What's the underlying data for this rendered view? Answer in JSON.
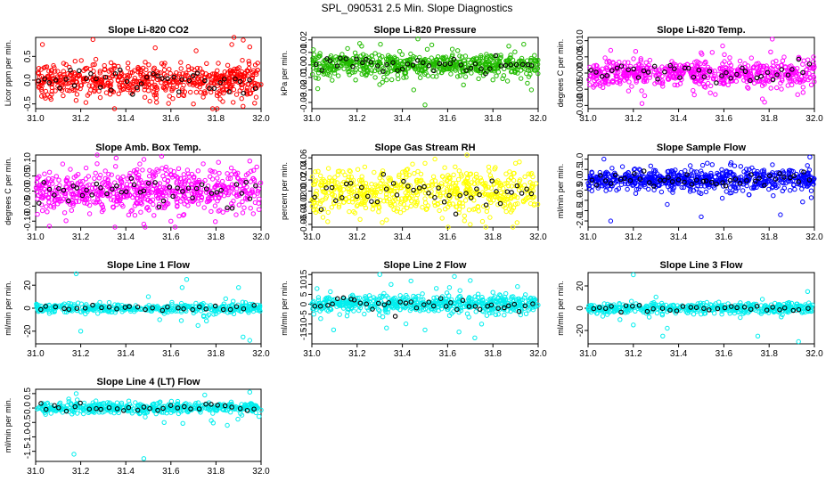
{
  "figure_title": "SPL_090531  2.5 Min. Slope Diagnostics",
  "colors": {
    "red": "#ff0000",
    "green": "#22bb00",
    "magenta": "#ff00ff",
    "yellow": "#ffff00",
    "blue": "#0000ff",
    "cyan": "#00eeee",
    "black": "#000000"
  },
  "chart_data": [
    {
      "type": "scatter",
      "title": "Slope Li-820 CO2",
      "ylabel": "Licor ppm per min.",
      "color": "red",
      "xlim": [
        31.0,
        32.0
      ],
      "ylim": [
        -0.6,
        0.9
      ],
      "yticks": [
        -0.5,
        0.0,
        0.5
      ],
      "ytick_labels": [
        "-0.5",
        "0.0",
        "0.5"
      ],
      "xticks": [
        31.0,
        31.2,
        31.4,
        31.6,
        31.8,
        32.0
      ],
      "xtick_labels": [
        "31.0",
        "31.2",
        "31.4",
        "31.6",
        "31.8",
        "32.0"
      ],
      "n_points": 600,
      "spread": 0.18,
      "outliers": [
        [
          31.83,
          -0.45
        ],
        [
          31.87,
          0.75
        ],
        [
          31.88,
          0.9
        ],
        [
          31.92,
          -0.55
        ],
        [
          31.95,
          0.7
        ],
        [
          31.03,
          0.75
        ],
        [
          31.7,
          -0.5
        ]
      ]
    },
    {
      "type": "scatter",
      "title": "Slope Li-820 Pressure",
      "ylabel": "kPa per min.",
      "color": "green",
      "xlim": [
        31.0,
        32.0
      ],
      "ylim": [
        -0.035,
        0.022
      ],
      "yticks": [
        -0.03,
        -0.02,
        -0.01,
        0.0,
        0.01,
        0.02
      ],
      "ytick_labels": [
        "-0.03",
        "-0.02",
        "-0.01",
        "0.00",
        "0.01",
        "0.02"
      ],
      "xticks": [
        31.0,
        31.2,
        31.4,
        31.6,
        31.8,
        32.0
      ],
      "xtick_labels": [
        "31.0",
        "31.2",
        "31.4",
        "31.6",
        "31.8",
        "32.0"
      ],
      "n_points": 600,
      "spread": 0.0045,
      "outliers": [
        [
          31.22,
          0.015
        ],
        [
          31.28,
          -0.01
        ],
        [
          31.33,
          -0.012
        ],
        [
          31.45,
          -0.02
        ],
        [
          31.5,
          -0.032
        ],
        [
          31.53,
          0.016
        ],
        [
          31.67,
          -0.016
        ],
        [
          31.8,
          -0.012
        ],
        [
          31.97,
          -0.02
        ],
        [
          31.87,
          0.015
        ]
      ]
    },
    {
      "type": "scatter",
      "title": "Slope Li-820 Temp.",
      "ylabel": "degrees C per min.",
      "color": "magenta",
      "xlim": [
        31.0,
        32.0
      ],
      "ylim": [
        -0.011,
        0.011
      ],
      "yticks": [
        -0.01,
        -0.005,
        0.0,
        0.005,
        0.01
      ],
      "ytick_labels": [
        "-0.010",
        "-0.005",
        "0.000",
        "0.005",
        "0.010"
      ],
      "xticks": [
        31.0,
        31.2,
        31.4,
        31.6,
        31.8,
        32.0
      ],
      "xtick_labels": [
        "31.0",
        "31.2",
        "31.4",
        "31.6",
        "31.8",
        "32.0"
      ],
      "n_points": 600,
      "spread": 0.0022,
      "outliers": [
        [
          31.77,
          -0.008
        ],
        [
          31.78,
          -0.009
        ],
        [
          31.25,
          -0.007
        ],
        [
          31.1,
          0.007
        ],
        [
          31.95,
          -0.006
        ]
      ]
    },
    {
      "type": "scatter",
      "title": "Slope Amb. Box Temp.",
      "ylabel": "degrees C per min.",
      "color": "magenta",
      "xlim": [
        31.0,
        32.0
      ],
      "ylim": [
        -0.12,
        0.12
      ],
      "yticks": [
        -0.1,
        -0.05,
        0.0,
        0.05,
        0.1
      ],
      "ytick_labels": [
        "-0.10",
        "-0.05",
        "0.00",
        "0.05",
        "0.10"
      ],
      "xticks": [
        31.0,
        31.2,
        31.4,
        31.6,
        31.8,
        32.0
      ],
      "xtick_labels": [
        "31.0",
        "31.2",
        "31.4",
        "31.6",
        "31.8",
        "32.0"
      ],
      "n_points": 650,
      "spread": 0.035,
      "outliers": [
        [
          31.48,
          -0.11
        ],
        [
          31.12,
          0.09
        ],
        [
          31.95,
          0.1
        ],
        [
          31.6,
          -0.1
        ]
      ]
    },
    {
      "type": "scatter",
      "title": "Slope Gas Stream RH",
      "ylabel": "percent per min.",
      "color": "yellow",
      "xlim": [
        31.0,
        32.0
      ],
      "ylim": [
        -0.065,
        0.065
      ],
      "yticks": [
        -0.06,
        -0.04,
        -0.02,
        0.0,
        0.02,
        0.04,
        0.06
      ],
      "ytick_labels": [
        "-0.06",
        "-0.04",
        "-0.02",
        "0.00",
        "0.02",
        "0.04",
        "0.06"
      ],
      "xticks": [
        31.0,
        31.2,
        31.4,
        31.6,
        31.8,
        32.0
      ],
      "xtick_labels": [
        "31.0",
        "31.2",
        "31.4",
        "31.6",
        "31.8",
        "32.0"
      ],
      "n_points": 600,
      "spread": 0.02,
      "outliers": [
        [
          31.07,
          -0.055
        ],
        [
          31.33,
          -0.052
        ],
        [
          31.5,
          0.05
        ],
        [
          31.7,
          -0.06
        ],
        [
          31.9,
          0.05
        ]
      ]
    },
    {
      "type": "scatter",
      "title": "Slope Sample Flow",
      "ylabel": "ml/min per min.",
      "color": "blue",
      "xlim": [
        31.0,
        32.0
      ],
      "ylim": [
        -2.3,
        1.2
      ],
      "yticks": [
        -2.0,
        -1.5,
        -1.0,
        -0.5,
        0.0,
        0.5,
        1.0
      ],
      "ytick_labels": [
        "-2.0",
        "-1.5",
        "-1.0",
        "-0.5",
        "0.0",
        "0.5",
        "1.0"
      ],
      "xticks": [
        31.0,
        31.2,
        31.4,
        31.6,
        31.8,
        32.0
      ],
      "xtick_labels": [
        "31.0",
        "31.2",
        "31.4",
        "31.6",
        "31.8",
        "32.0"
      ],
      "n_points": 650,
      "spread": 0.25,
      "outliers": [
        [
          31.1,
          -2.0
        ],
        [
          31.5,
          -1.8
        ],
        [
          31.85,
          -1.7
        ],
        [
          31.98,
          1.1
        ],
        [
          31.07,
          1.0
        ],
        [
          31.35,
          -1.2
        ]
      ]
    },
    {
      "type": "scatter",
      "title": "Slope Line 1 Flow",
      "ylabel": "ml/min per min.",
      "color": "cyan",
      "xlim": [
        31.0,
        32.0
      ],
      "ylim": [
        -31,
        31
      ],
      "yticks": [
        -20,
        0,
        20
      ],
      "ytick_labels": [
        "-20",
        "0",
        "20"
      ],
      "xticks": [
        31.0,
        31.2,
        31.4,
        31.6,
        31.8,
        32.0
      ],
      "xtick_labels": [
        "31.0",
        "31.2",
        "31.4",
        "31.6",
        "31.8",
        "32.0"
      ],
      "n_points": 400,
      "spread": 2.0,
      "outliers": [
        [
          31.18,
          30
        ],
        [
          31.2,
          -20
        ],
        [
          31.65,
          18
        ],
        [
          31.67,
          25
        ],
        [
          31.72,
          -15
        ],
        [
          31.9,
          18
        ],
        [
          31.92,
          -25
        ],
        [
          31.95,
          -28
        ],
        [
          31.5,
          10
        ],
        [
          31.55,
          -10
        ]
      ]
    },
    {
      "type": "scatter",
      "title": "Slope Line 2 Flow",
      "ylabel": "ml/min per min.",
      "color": "cyan",
      "xlim": [
        31.0,
        32.0
      ],
      "ylim": [
        -20,
        16
      ],
      "yticks": [
        -15,
        -10,
        -5,
        0,
        5,
        10,
        15
      ],
      "ytick_labels": [
        "-15",
        "-10",
        "-5",
        "0",
        "5",
        "10",
        "15"
      ],
      "xticks": [
        31.0,
        31.2,
        31.4,
        31.6,
        31.8,
        32.0
      ],
      "xtick_labels": [
        "31.0",
        "31.2",
        "31.4",
        "31.6",
        "31.8",
        "32.0"
      ],
      "n_points": 550,
      "spread": 2.0,
      "outliers": [
        [
          31.3,
          15
        ],
        [
          31.33,
          -12
        ],
        [
          31.35,
          10
        ],
        [
          31.5,
          -13
        ],
        [
          31.55,
          8
        ],
        [
          31.63,
          14
        ],
        [
          31.65,
          -14
        ],
        [
          31.7,
          12
        ],
        [
          31.72,
          -17
        ],
        [
          31.75,
          -10
        ],
        [
          31.8,
          6
        ]
      ]
    },
    {
      "type": "scatter",
      "title": "Slope Line 3 Flow",
      "ylabel": "ml/min per min.",
      "color": "cyan",
      "xlim": [
        31.0,
        32.0
      ],
      "ylim": [
        -32,
        32
      ],
      "yticks": [
        -20,
        0,
        20
      ],
      "ytick_labels": [
        "-20",
        "0",
        "20"
      ],
      "xticks": [
        31.0,
        31.2,
        31.4,
        31.6,
        31.8,
        32.0
      ],
      "xtick_labels": [
        "31.0",
        "31.2",
        "31.4",
        "31.6",
        "31.8",
        "32.0"
      ],
      "n_points": 450,
      "spread": 2.5,
      "outliers": [
        [
          31.2,
          30
        ],
        [
          31.2,
          -15
        ],
        [
          31.27,
          -8
        ],
        [
          31.3,
          10
        ],
        [
          31.33,
          -25
        ],
        [
          31.35,
          -18
        ],
        [
          31.75,
          -25
        ],
        [
          31.77,
          8
        ],
        [
          31.93,
          -30
        ],
        [
          31.97,
          15
        ]
      ]
    },
    {
      "type": "scatter",
      "title": "Slope Line 4 (LT) Flow",
      "ylabel": "ml/min per min.",
      "color": "cyan",
      "xlim": [
        31.0,
        32.0
      ],
      "ylim": [
        -1.85,
        0.65
      ],
      "yticks": [
        -1.5,
        -1.0,
        -0.5,
        0.0,
        0.5
      ],
      "ytick_labels": [
        "-1.5",
        "-1.0",
        "-0.5",
        "0.0",
        "0.5"
      ],
      "xticks": [
        31.0,
        31.2,
        31.4,
        31.6,
        31.8,
        32.0
      ],
      "xtick_labels": [
        "31.0",
        "31.2",
        "31.4",
        "31.6",
        "31.8",
        "32.0"
      ],
      "n_points": 450,
      "spread": 0.1,
      "outliers": [
        [
          31.17,
          -1.6
        ],
        [
          31.48,
          -1.75
        ],
        [
          31.57,
          -0.5
        ],
        [
          31.18,
          0.5
        ],
        [
          31.95,
          0.55
        ],
        [
          31.85,
          -0.6
        ],
        [
          31.75,
          0.45
        ]
      ]
    }
  ]
}
